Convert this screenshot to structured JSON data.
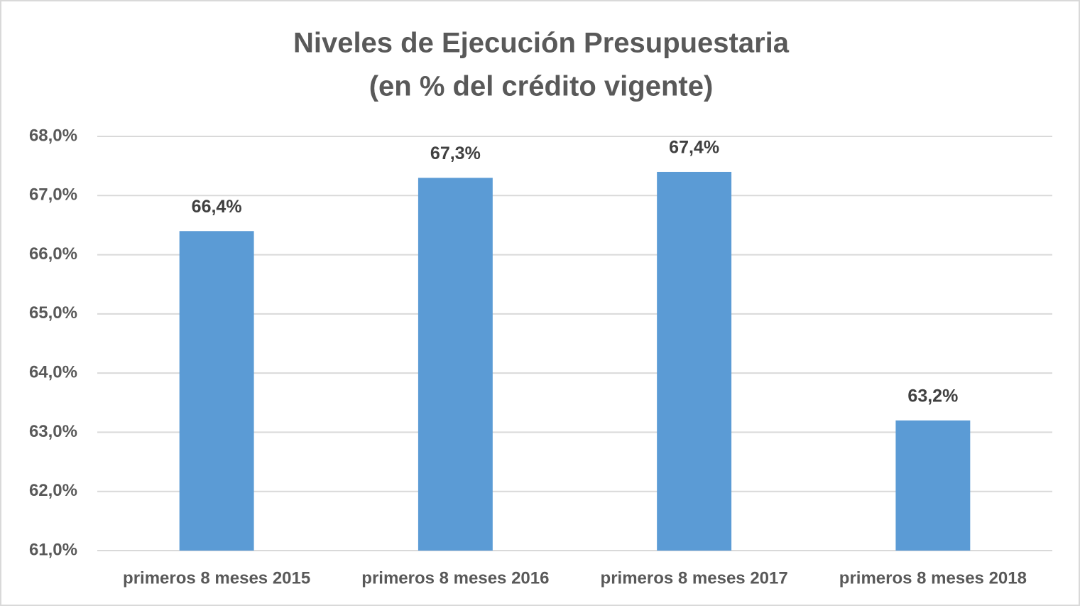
{
  "chart_data": {
    "type": "bar",
    "title": "Niveles de Ejecución Presupuestaria",
    "subtitle": "(en % del crédito vigente)",
    "categories": [
      "primeros 8 meses 2015",
      "primeros 8 meses 2016",
      "primeros 8 meses 2017",
      "primeros 8 meses 2018"
    ],
    "values": [
      66.4,
      67.3,
      67.4,
      63.2
    ],
    "value_labels": [
      "66,4%",
      "67,3%",
      "67,4%",
      "63,2%"
    ],
    "color": "#5b9bd5",
    "ylim": [
      61,
      68
    ],
    "yticks": [
      {
        "value": 61,
        "label": "61,0%"
      },
      {
        "value": 62,
        "label": "62,0%"
      },
      {
        "value": 63,
        "label": "63,0%"
      },
      {
        "value": 64,
        "label": "64,0%"
      },
      {
        "value": 65,
        "label": "65,0%"
      },
      {
        "value": 66,
        "label": "66,0%"
      },
      {
        "value": 67,
        "label": "67,0%"
      },
      {
        "value": 68,
        "label": "68,0%"
      }
    ],
    "grid": true
  }
}
